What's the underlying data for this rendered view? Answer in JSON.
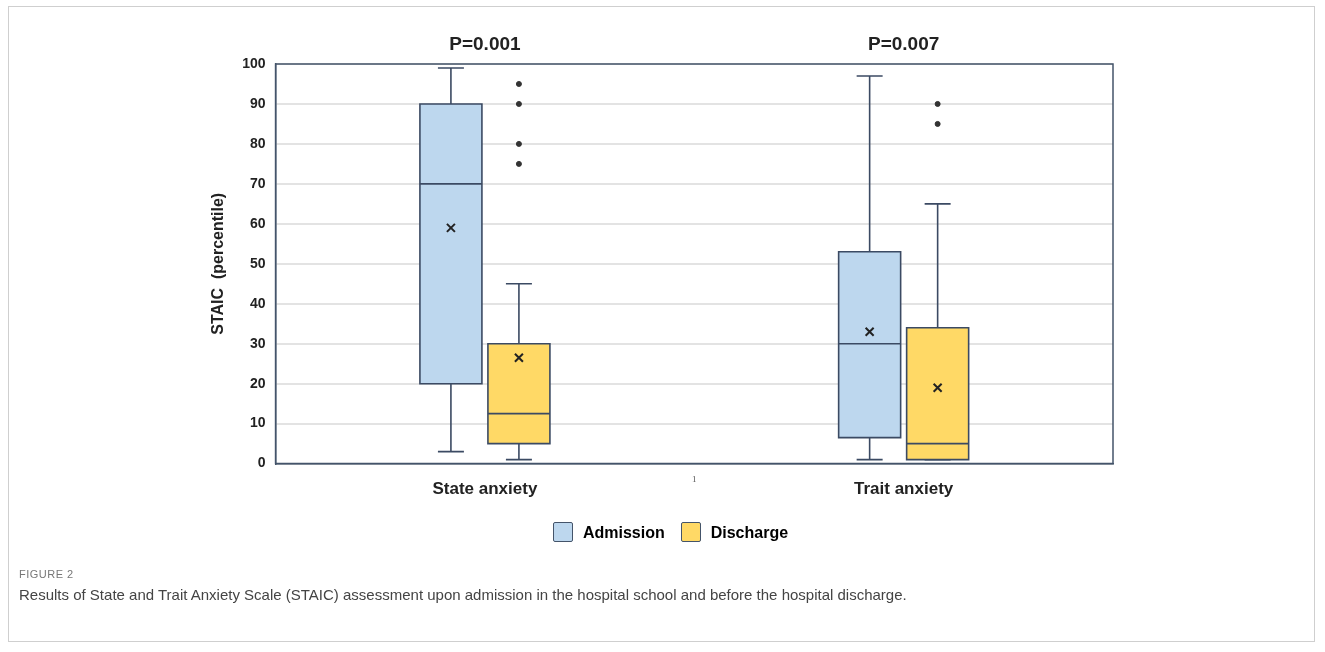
{
  "chart_data": {
    "type": "box",
    "ylabel": "STAIC  (percentile)",
    "categories": [
      "State anxiety",
      "Trait anxiety"
    ],
    "series": [
      {
        "name": "Admission",
        "color": "#bdd7ee",
        "boxes": [
          {
            "low": 3,
            "q1": 20,
            "median": 70,
            "q3": 90,
            "high": 99,
            "mean": 59
          },
          {
            "low": 1,
            "q1": 6.5,
            "median": 30,
            "q3": 53,
            "high": 97,
            "mean": 33
          }
        ]
      },
      {
        "name": "Discharge",
        "color": "#ffd966",
        "boxes": [
          {
            "low": 1,
            "q1": 5,
            "median": 12.5,
            "q3": 30,
            "high": 45,
            "mean": 26.5,
            "outliers": [
              75,
              80,
              90,
              95
            ]
          },
          {
            "low": 1,
            "q1": 1,
            "median": 5,
            "q3": 34,
            "high": 65,
            "mean": 19,
            "outliers": [
              85,
              90
            ]
          }
        ]
      }
    ],
    "ylim": [
      0,
      100
    ],
    "yticks": [
      0,
      10,
      20,
      30,
      40,
      50,
      60,
      70,
      80,
      90,
      100
    ],
    "grid": "y",
    "legend": "bottom",
    "marker": "cross",
    "annotations": [
      "P=0.001",
      "P=0.007",
      "1",
      "FIGURE 2",
      "Results of State and Trait Anxiety Scale (STAIC) assessment upon admission in the hospital school and before the hospital discharge."
    ]
  }
}
